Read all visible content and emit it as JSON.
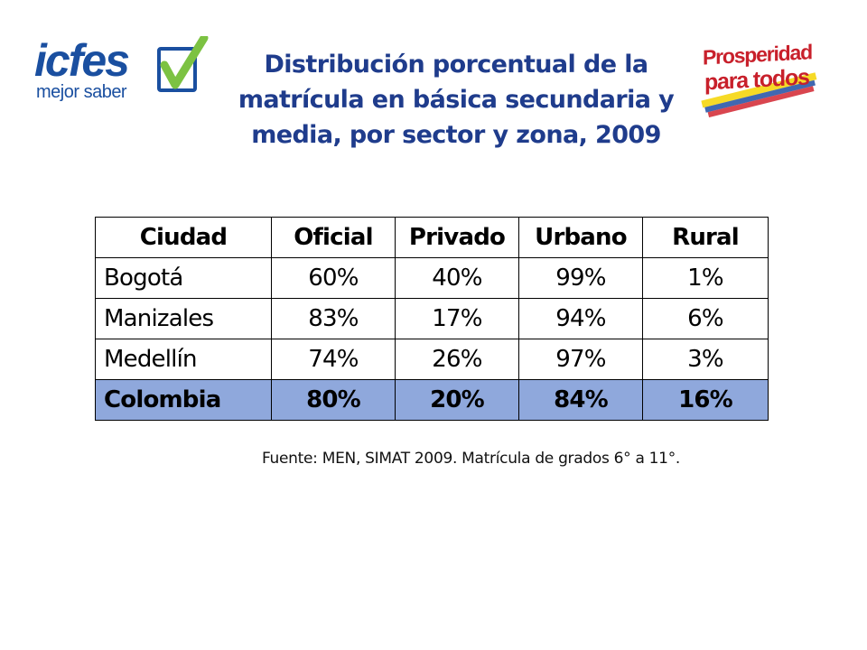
{
  "logo_left": {
    "brand": "icfes",
    "tagline": "mejor saber",
    "icon": "check-icon",
    "brand_color": "#1a4fa0",
    "check_color": "#7cc242"
  },
  "logo_right": {
    "line1": "Prosperidad",
    "line2": "para todos",
    "flag_colors": [
      "#f5d400",
      "#1f4ea3",
      "#d22630"
    ]
  },
  "title": {
    "line1": "Distribución porcentual de la",
    "line2": "matrícula en básica secundaria y",
    "line3": "media, por sector y zona, 2009",
    "color": "#1f3c8c"
  },
  "table": {
    "headers": [
      "Ciudad",
      "Oficial",
      "Privado",
      "Urbano",
      "Rural"
    ],
    "rows": [
      [
        "Bogotá",
        "60%",
        "40%",
        "99%",
        "1%"
      ],
      [
        "Manizales",
        "83%",
        "17%",
        "94%",
        "6%"
      ],
      [
        "Medellín",
        "74%",
        "26%",
        "97%",
        "3%"
      ]
    ],
    "total": [
      "Colombia",
      "80%",
      "20%",
      "84%",
      "16%"
    ],
    "total_bg": "#8fa8dc"
  },
  "source": "Fuente: MEN, SIMAT 2009. Matrícula de grados 6° a 11°."
}
